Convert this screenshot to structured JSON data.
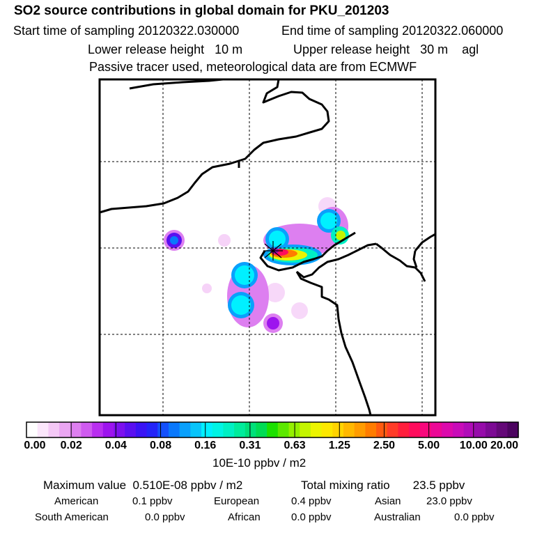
{
  "header": {
    "title": "SO2 source contributions in global domain for PKU_201203",
    "start_time": "Start time of sampling 20120322.030000",
    "end_time": "End time of sampling 20120322.060000",
    "lower_release": "Lower release height   10 m",
    "upper_release": "Upper release height   30 m    agl",
    "tracer_note": "Passive tracer used, meteorological data are from ECMWF"
  },
  "chart_data": {
    "type": "heatmap",
    "title": "SO2 source contributions in global domain for PKU_201203",
    "colorbar": {
      "ticks": [
        "0.00",
        "0.02",
        "0.04",
        "0.08",
        "0.16",
        "0.31",
        "0.63",
        "1.25",
        "2.50",
        "5.00",
        "10.00",
        "20.00"
      ],
      "units": "10E-10 ppbv / m2",
      "colors": [
        "#ffffff",
        "#fbe6fb",
        "#f4c8f6",
        "#eaa6f2",
        "#dd7ff0",
        "#cf5bf0",
        "#b92ff0",
        "#9d14ee",
        "#7c10ee",
        "#5a10f0",
        "#3a14f4",
        "#2424f8",
        "#1450fc",
        "#0a78fc",
        "#0aa0fc",
        "#08c4fa",
        "#00f0ff",
        "#00f4e4",
        "#00f0c4",
        "#00ec9c",
        "#00e07a",
        "#00dc54",
        "#1ce000",
        "#5ce800",
        "#94f000",
        "#c4f400",
        "#ecf400",
        "#fce800",
        "#ffd400",
        "#ffb800",
        "#ff9c00",
        "#ff7c00",
        "#ff5a10",
        "#ff3c28",
        "#ff1e3c",
        "#ff0c5c",
        "#f8087c",
        "#ec0896",
        "#dc0aac",
        "#c80cb8",
        "#b00cb8",
        "#960caa",
        "#7c0a94",
        "#640878",
        "#4c0460"
      ]
    },
    "source_marker": "release point"
  },
  "stats": {
    "max_value": "Maximum value  0.510E-08 ppbv / m2",
    "total_mixing": "Total mixing ratio       23.5 ppbv"
  },
  "regions": {
    "american_label": "American",
    "american_value": "0.1 ppbv",
    "european_label": "European",
    "european_value": "0.4 ppbv",
    "asian_label": "Asian",
    "asian_value": "23.0 ppbv",
    "south_american_label": "South American",
    "south_american_value": "0.0 ppbv",
    "african_label": "African",
    "african_value": "0.0 ppbv",
    "australian_label": "Australian",
    "australian_value": "0.0 ppbv"
  }
}
